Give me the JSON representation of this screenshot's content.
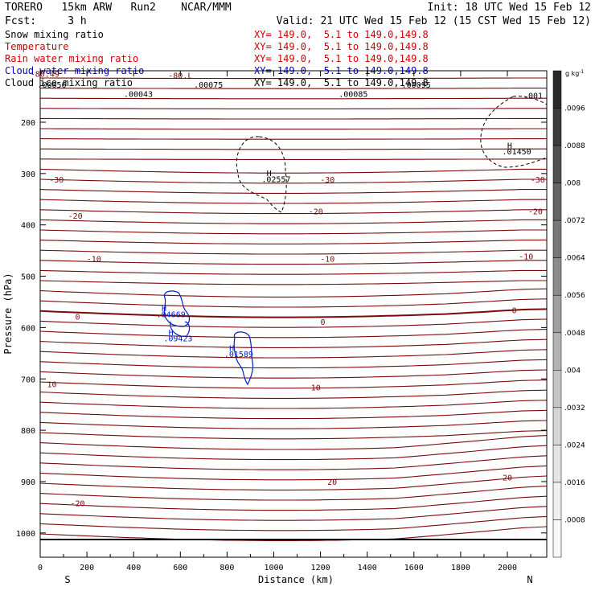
{
  "header": {
    "line1_left": "TORERO   15km ARW   Run2    NCAR/MMM",
    "line1_right": "Init: 18 UTC Wed 15 Feb 12",
    "line2_left": "Fcst:     3 h",
    "line2_right": "Valid: 21 UTC Wed 15 Feb 12 (15 CST Wed 15 Feb 12)"
  },
  "legend": [
    {
      "label": "Snow mixing ratio",
      "range": "XY= 149.0,  5.1 to 149.0,149.8",
      "color": "#000000"
    },
    {
      "label": "Temperature",
      "range": "XY= 149.0,  5.1 to 149.0,149.8",
      "color": "#cc0000"
    },
    {
      "label": "Rain water mixing ratio",
      "range": "XY= 149.0,  5.1 to 149.0,149.8",
      "color": "#cc0000"
    },
    {
      "label": "Cloud water mixing ratio",
      "range": "XY= 149.0,  5.1 to 149.0,149.8",
      "color": "#0000cc"
    },
    {
      "label": "Cloud ice mixing ratio",
      "range": "XY= 149.0,  5.1 to 149.0,149.8",
      "color": "#000000"
    }
  ],
  "colors": {
    "temperature": "#7a0a0a",
    "snow": "#000000",
    "cloud_water": "#0020cc"
  },
  "chart_data": {
    "type": "cross-section contour",
    "xlabel": "Distance (km)",
    "ylabel": "Pressure (hPa)",
    "x_ticks": [
      0,
      200,
      400,
      600,
      800,
      1000,
      1200,
      1400,
      1600,
      1800,
      2000
    ],
    "x_tick_labels": [
      "0",
      "200",
      "400",
      "600",
      "800",
      "1000",
      "1200",
      "1400",
      "1600",
      "1800",
      "2000"
    ],
    "y_ticks": [
      200,
      300,
      400,
      500,
      600,
      700,
      800,
      900,
      1000
    ],
    "y_tick_labels": [
      "200",
      "300",
      "400",
      "500",
      "600",
      "700",
      "800",
      "900",
      "1000"
    ],
    "xlim": [
      0,
      2180
    ],
    "ylim": [
      100,
      1050
    ],
    "end_labels": {
      "left": "S",
      "right": "N"
    },
    "temperature_contour_labels": [
      {
        "text": "-80.49",
        "x": 20,
        "p": 107
      },
      {
        "text": "-80.L",
        "x": 600,
        "p": 110
      },
      {
        "text": "-30",
        "x": 70,
        "p": 313
      },
      {
        "text": "-30",
        "x": 1230,
        "p": 313
      },
      {
        "text": "-30",
        "x": 2130,
        "p": 313
      },
      {
        "text": "-20",
        "x": 150,
        "p": 383
      },
      {
        "text": "-20",
        "x": 1180,
        "p": 375
      },
      {
        "text": "-20",
        "x": 2120,
        "p": 375
      },
      {
        "text": "-10",
        "x": 230,
        "p": 467
      },
      {
        "text": "-10",
        "x": 1230,
        "p": 467
      },
      {
        "text": "-10",
        "x": 2080,
        "p": 462
      },
      {
        "text": "0",
        "x": 160,
        "p": 580
      },
      {
        "text": "0",
        "x": 1210,
        "p": 590
      },
      {
        "text": "0",
        "x": 2030,
        "p": 567
      },
      {
        "text": "10",
        "x": 50,
        "p": 711
      },
      {
        "text": "10",
        "x": 1180,
        "p": 718
      },
      {
        "text": "20",
        "x": 1250,
        "p": 902
      },
      {
        "text": "20",
        "x": 2000,
        "p": 893
      },
      {
        "text": "-20",
        "x": 160,
        "p": 943
      }
    ],
    "snow_maxima": [
      {
        "mark": "H",
        "value": ".02557",
        "x": 980,
        "p": 312
      },
      {
        "mark": "H",
        "value": ".01450",
        "x": 2010,
        "p": 258
      },
      {
        "mark": "",
        "value": ".001",
        "x": 2080,
        "p": 149
      }
    ],
    "cloud_water_maxima": [
      {
        "mark": "H",
        "value": ".04669",
        "x": 530,
        "p": 575
      },
      {
        "mark": "H",
        "value": ".09423",
        "x": 560,
        "p": 622
      },
      {
        "mark": "H",
        "value": ".01589",
        "x": 820,
        "p": 653
      }
    ],
    "ice_maxima": [
      {
        "mark": "",
        "value": ".00056",
        "x": 20,
        "p": 128
      },
      {
        "mark": "",
        "value": ".00043",
        "x": 390,
        "p": 146
      },
      {
        "mark": "",
        "value": ".00075",
        "x": 690,
        "p": 128
      },
      {
        "mark": "",
        "value": ".00085",
        "x": 1310,
        "p": 146
      },
      {
        "mark": "",
        "value": ".00095",
        "x": 1580,
        "p": 128
      }
    ],
    "colorbar": {
      "unit": "g kg",
      "unit_exp": "-1",
      "labels": [
        ".0096",
        ".0088",
        ".008",
        ".0072",
        ".0064",
        ".0056",
        ".0048",
        ".004",
        ".0032",
        ".0024",
        ".0016",
        ".0008"
      ],
      "grays": [
        "#2a2a2a",
        "#3c3c3c",
        "#505050",
        "#646464",
        "#787878",
        "#8c8c8c",
        "#a0a0a0",
        "#b4b4b4",
        "#c6c6c6",
        "#d6d6d6",
        "#e4e4e4",
        "#efefef",
        "#f7f7f7"
      ]
    },
    "temperature_isotherm_count": 48
  }
}
